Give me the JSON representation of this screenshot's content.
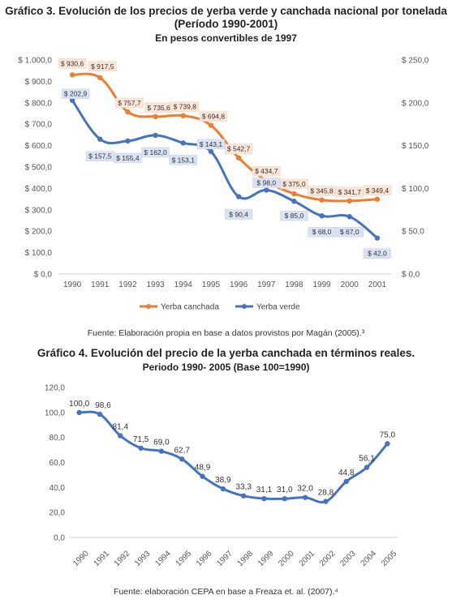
{
  "chart3": {
    "title_line1": "Gráfico 3. Evolución de los precios de yerba verde y canchada nacional por tonelada",
    "title_line2": "(Período 1990-2001)",
    "subtitle": "En pesos convertibles de 1997",
    "source": "Fuente: Elaboración propia en base a datos provistos por Magán (2005).³"
  },
  "chart4": {
    "title": "Gráfico 4. Evolución del precio de la yerba canchada en términos reales.",
    "subtitle": "Periodo 1990- 2005 (Base 100=1990)",
    "source": "Fuente: elaboración CEPA en base a Freaza et. al. (2007).⁴"
  },
  "chart_data": [
    {
      "type": "line",
      "title": "Gráfico 3. Evolución de los precios de yerba verde y canchada nacional por tonelada (Período 1990-2001)",
      "subtitle": "En pesos convertibles de 1997",
      "categories": [
        "1990",
        "1991",
        "1992",
        "1993",
        "1994",
        "1995",
        "1996",
        "1997",
        "1998",
        "1999",
        "2000",
        "2001"
      ],
      "y_ticks": [
        "$ 0,0",
        "$ 100,0",
        "$ 200,0",
        "$ 300,0",
        "$ 400,0",
        "$ 500,0",
        "$ 600,0",
        "$ 700,0",
        "$ 800,0",
        "$ 900,0",
        "$ 1.000,0"
      ],
      "y2_ticks": [
        "$ 0,0",
        "$ 50,0",
        "$ 100,0",
        "$ 150,0",
        "$ 200,0",
        "$ 250,0"
      ],
      "ylim": [
        0,
        1000
      ],
      "y2lim": [
        0,
        250
      ],
      "grid": false,
      "legend": "bottom",
      "series": [
        {
          "name": "Yerba canchada",
          "axis": "left",
          "color": "#ED7D31",
          "values": [
            930.6,
            917.5,
            757.7,
            735.6,
            739.8,
            694.8,
            542.7,
            434.7,
            375.0,
            345.8,
            341.7,
            349.4
          ],
          "labels": [
            "$ 930,6",
            "$ 917,5",
            "$ 757,7",
            "$ 735,6",
            "$ 739,8",
            "$ 694,8",
            "$ 542,7",
            "$ 434,7",
            "$ 375,0",
            "$ 345,8",
            "$ 341,7",
            "$ 349,4"
          ]
        },
        {
          "name": "Yerba verde",
          "axis": "right",
          "color": "#4472C4",
          "values": [
            202.9,
            157.5,
            155.4,
            162.0,
            153.1,
            143.1,
            90.4,
            98.0,
            85.0,
            68.0,
            67.0,
            42.0
          ],
          "labels": [
            "$ 202,9",
            "$ 157,5",
            "$ 155,4",
            "$ 162,0",
            "$ 153,1",
            "$ 143,1",
            "$ 90,4",
            "$ 98,0",
            "$ 85,0",
            "$ 68,0",
            "$ 67,0",
            "$ 42,0"
          ]
        }
      ]
    },
    {
      "type": "line",
      "title": "Gráfico 4. Evolución del precio de la yerba canchada en términos reales.",
      "subtitle": "Periodo 1990- 2005 (Base 100=1990)",
      "categories": [
        "1990",
        "1991",
        "1992",
        "1993",
        "1994",
        "1995",
        "1996",
        "1997",
        "1998",
        "1999",
        "2000",
        "2001",
        "2002",
        "2003",
        "2004",
        "2005"
      ],
      "y_ticks": [
        "0,0",
        "20,0",
        "40,0",
        "60,0",
        "80,0",
        "100,0",
        "120,0"
      ],
      "ylim": [
        0,
        120
      ],
      "grid": false,
      "series": [
        {
          "color": "#4472C4",
          "values": [
            100.0,
            98.6,
            81.4,
            71.5,
            69.0,
            62.7,
            48.9,
            38.9,
            33.3,
            31.1,
            31.0,
            32.0,
            28.8,
            44.8,
            56.1,
            75.0
          ],
          "labels": [
            "100,0",
            "98,6",
            "81,4",
            "71,5",
            "69,0",
            "62,7",
            "48,9",
            "38,9",
            "33,3",
            "31,1",
            "31,0",
            "32,0",
            "28,8",
            "44,8",
            "56,1",
            "75,0"
          ]
        }
      ]
    }
  ]
}
